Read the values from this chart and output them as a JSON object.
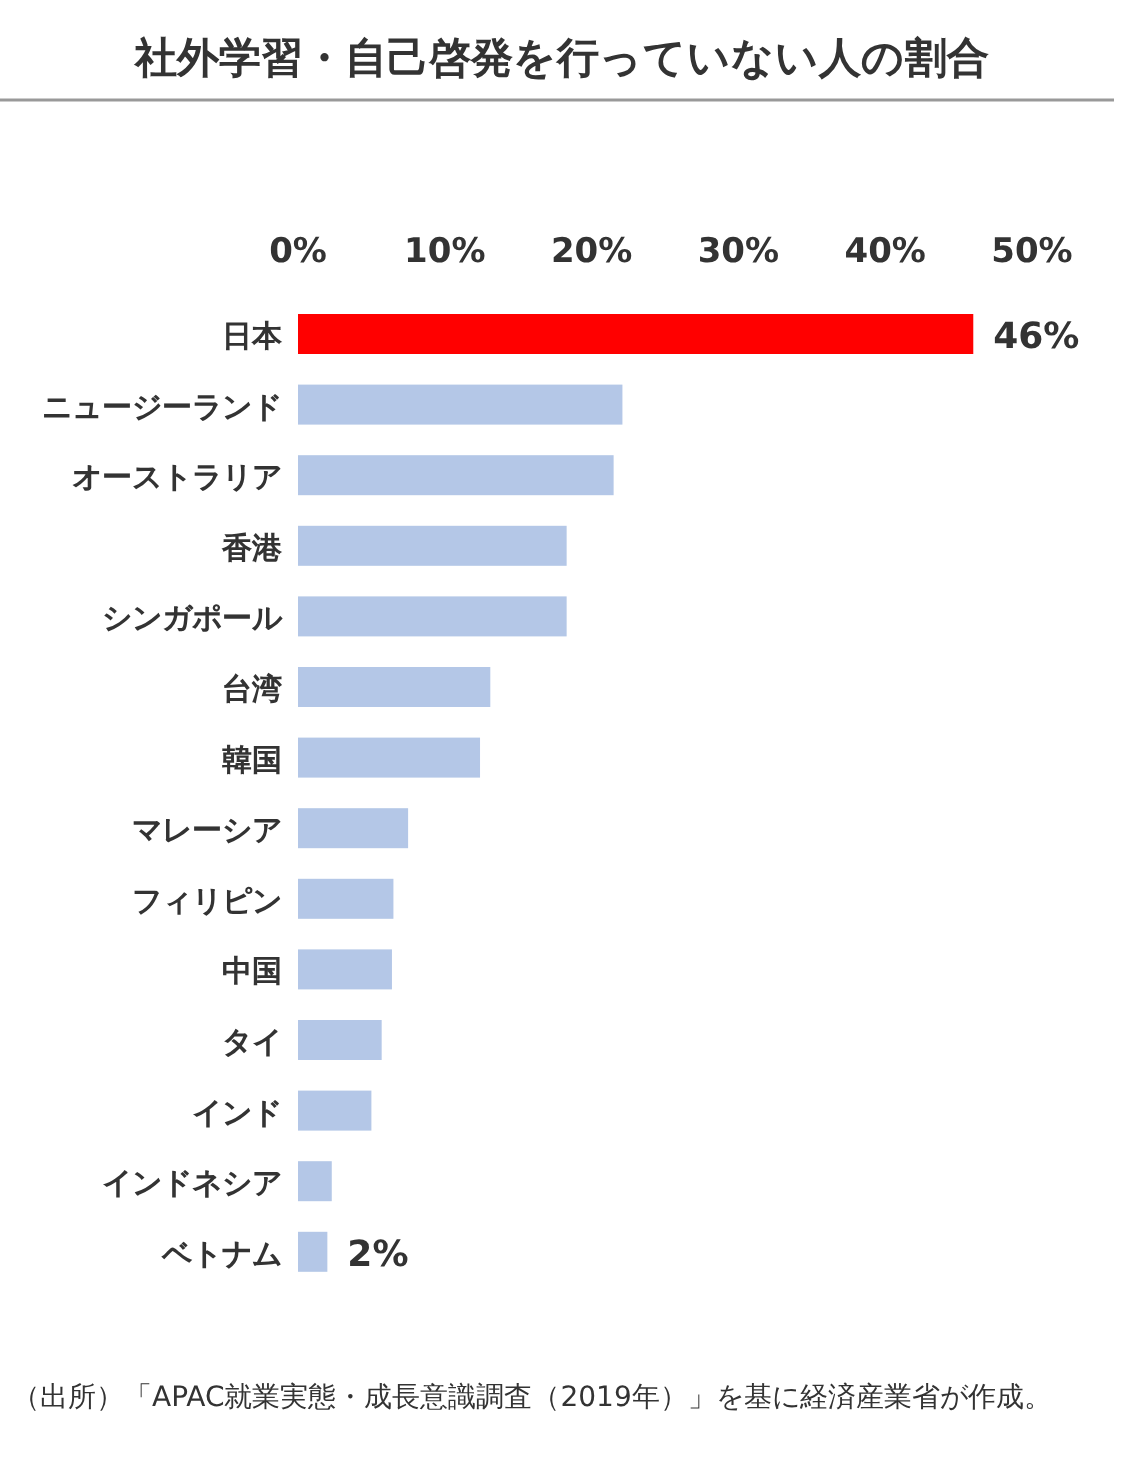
{
  "chart_data": {
    "type": "bar",
    "orientation": "horizontal",
    "title": "社外学習・自己啓発を行っていない人の割合",
    "categories": [
      "日本",
      "ニュージーランド",
      "オーストラリア",
      "香港",
      "シンガポール",
      "台湾",
      "韓国",
      "マレーシア",
      "フィリピン",
      "中国",
      "タイ",
      "インド",
      "インドネシア",
      "ベトナム"
    ],
    "values": [
      46,
      22.1,
      21.5,
      18.3,
      18.3,
      13.1,
      12.4,
      7.5,
      6.5,
      6.4,
      5.7,
      5.0,
      2.3,
      2
    ],
    "colors": [
      "#ff0000",
      "#b4c7e7",
      "#b4c7e7",
      "#b4c7e7",
      "#b4c7e7",
      "#b4c7e7",
      "#b4c7e7",
      "#b4c7e7",
      "#b4c7e7",
      "#b4c7e7",
      "#b4c7e7",
      "#b4c7e7",
      "#b4c7e7",
      "#b4c7e7"
    ],
    "value_labels": [
      "46%",
      null,
      null,
      null,
      null,
      null,
      null,
      null,
      null,
      null,
      null,
      null,
      null,
      "2%"
    ],
    "xlim": [
      0,
      50
    ],
    "xticks": [
      {
        "value": 0,
        "label": "0%"
      },
      {
        "value": 10,
        "label": "10%"
      },
      {
        "value": 20,
        "label": "20%"
      },
      {
        "value": 30,
        "label": "30%"
      },
      {
        "value": 40,
        "label": "40%"
      },
      {
        "value": 50,
        "label": "50%"
      }
    ],
    "annotations": [
      "（出所）「APAC就業実態・成長意識調査（2019年）」を基に経済産業省が作成。"
    ]
  }
}
